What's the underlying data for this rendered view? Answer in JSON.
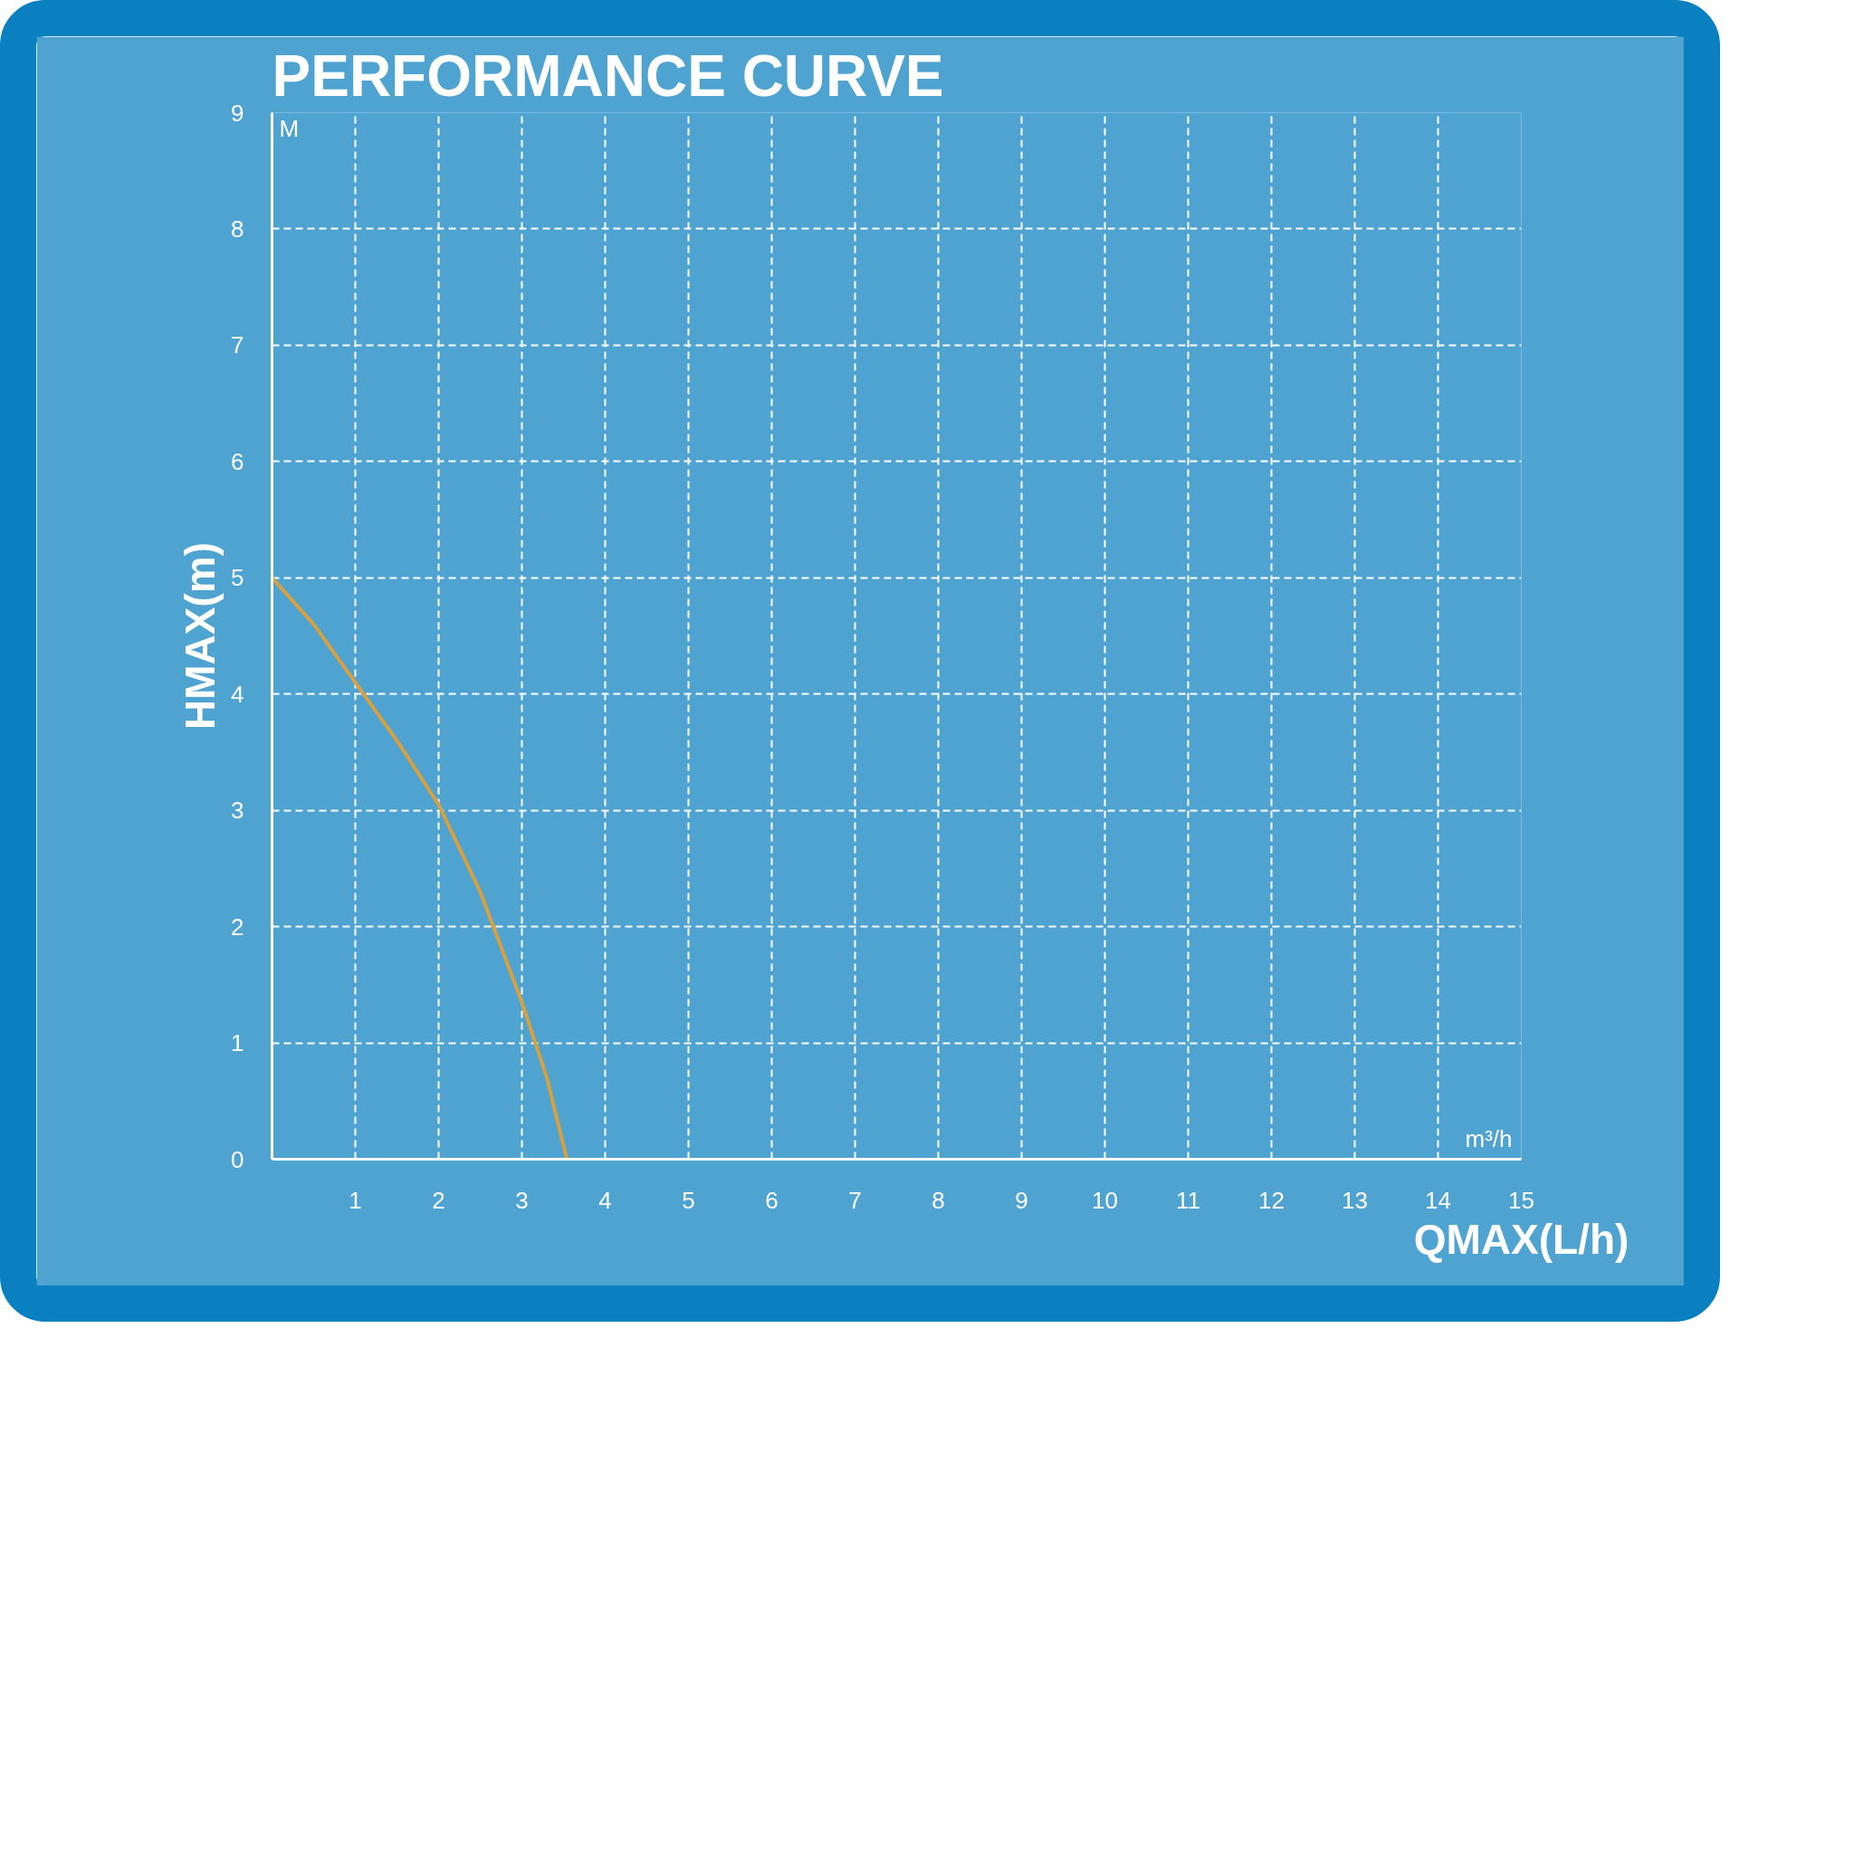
{
  "chart_data": {
    "type": "line",
    "title": "PERFORMANCE CURVE",
    "xlabel": "QMAX(L/h)",
    "ylabel": "HMAX(m)",
    "annotations": [
      "M",
      "m³/h"
    ],
    "x": [
      0,
      0.5,
      1,
      1.5,
      2,
      2.5,
      3,
      3.3,
      3.54
    ],
    "series": [
      {
        "color": "#d9a040",
        "values": [
          5,
          4.6,
          4.1,
          3.6,
          3.05,
          2.3,
          1.35,
          0.7,
          0
        ]
      }
    ],
    "xlim": [
      0,
      15
    ],
    "ylim": [
      0,
      9
    ],
    "xticks": [
      1,
      2,
      3,
      4,
      5,
      6,
      7,
      8,
      9,
      10,
      11,
      12,
      13,
      14,
      15
    ],
    "yticks": [
      0,
      1,
      2,
      3,
      4,
      5,
      6,
      7,
      8,
      9
    ],
    "grid": true,
    "line_style": "solid",
    "marker": "none"
  }
}
